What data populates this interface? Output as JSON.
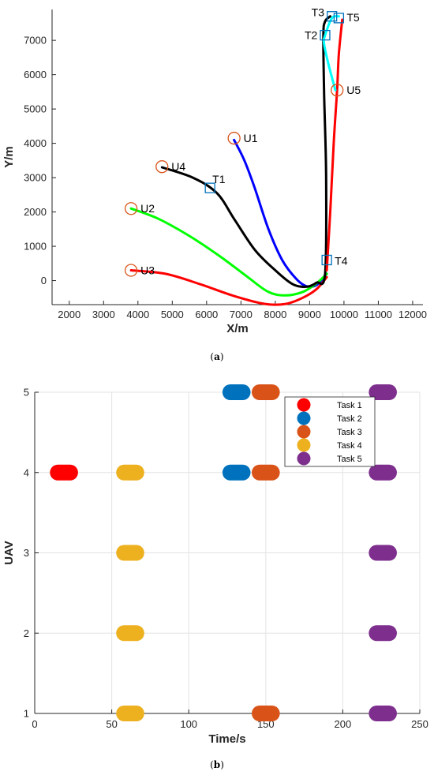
{
  "chart_data": [
    {
      "type": "line",
      "caption_letter": "a",
      "xlabel": "X/m",
      "ylabel": "Y/m",
      "xlim": [
        1500,
        12300
      ],
      "ylim": [
        -700,
        7900
      ],
      "xticks": [
        2000,
        3000,
        4000,
        5000,
        6000,
        7000,
        8000,
        9000,
        10000,
        11000,
        12000
      ],
      "yticks": [
        0,
        1000,
        2000,
        3000,
        4000,
        5000,
        6000,
        7000
      ],
      "grid": false,
      "colors": {
        "U1": "#0000ff",
        "U2": "#00ff00",
        "U3": "#ff0000",
        "U4": "#000000",
        "U5": "#ff0000",
        "T2_T5": "#00ffff",
        "uav_marker": "#d95319",
        "task_marker": "#0072bd"
      },
      "series": [
        {
          "name": "U1",
          "color": "#0000ff",
          "points": [
            [
              6800,
              4100
            ],
            [
              7100,
              3500
            ],
            [
              7400,
              2700
            ],
            [
              7800,
              1500
            ],
            [
              8200,
              600
            ],
            [
              8600,
              60
            ],
            [
              8900,
              -160
            ],
            [
              9200,
              -130
            ],
            [
              9500,
              200
            ]
          ]
        },
        {
          "name": "U2",
          "color": "#00ff00",
          "points": [
            [
              3800,
              2100
            ],
            [
              4600,
              1800
            ],
            [
              5500,
              1300
            ],
            [
              6400,
              700
            ],
            [
              7200,
              100
            ],
            [
              7800,
              -330
            ],
            [
              8300,
              -430
            ],
            [
              8800,
              -330
            ],
            [
              9200,
              -80
            ],
            [
              9500,
              200
            ]
          ]
        },
        {
          "name": "U3",
          "color": "#ff0000",
          "points": [
            [
              3800,
              300
            ],
            [
              4800,
              200
            ],
            [
              5800,
              -100
            ],
            [
              6800,
              -450
            ],
            [
              7700,
              -680
            ],
            [
              8300,
              -680
            ],
            [
              8800,
              -500
            ],
            [
              9200,
              -250
            ],
            [
              9500,
              100
            ]
          ]
        },
        {
          "name": "U4",
          "color": "#000000",
          "points": [
            [
              4700,
              3300
            ],
            [
              5600,
              3000
            ],
            [
              6300,
              2550
            ],
            [
              6800,
              1800
            ],
            [
              7400,
              900
            ],
            [
              8000,
              300
            ],
            [
              8500,
              -100
            ],
            [
              8900,
              -180
            ],
            [
              9200,
              -60
            ],
            [
              9450,
              200
            ],
            [
              9480,
              3000
            ],
            [
              9420,
              5500
            ],
            [
              9400,
              7150
            ],
            [
              9450,
              7550
            ],
            [
              9600,
              7700
            ]
          ]
        },
        {
          "name": "U5",
          "color": "#ff0000",
          "points": [
            [
              9500,
              300
            ],
            [
              9600,
              2000
            ],
            [
              9700,
              4000
            ],
            [
              9800,
              5550
            ],
            [
              9850,
              6600
            ],
            [
              9950,
              7600
            ]
          ]
        },
        {
          "name": "T2-T5",
          "color": "#00ffff",
          "points": [
            [
              9750,
              5550
            ],
            [
              9550,
              6300
            ],
            [
              9420,
              6900
            ],
            [
              9450,
              7150
            ],
            [
              9650,
              7650
            ],
            [
              9850,
              7700
            ]
          ]
        }
      ],
      "uav_markers": [
        {
          "label": "U1",
          "x": 6800,
          "y": 4150
        },
        {
          "label": "U2",
          "x": 3800,
          "y": 2100
        },
        {
          "label": "U3",
          "x": 3800,
          "y": 300
        },
        {
          "label": "U4",
          "x": 4700,
          "y": 3320
        },
        {
          "label": "U5",
          "x": 9800,
          "y": 5550
        }
      ],
      "task_markers": [
        {
          "label": "T1",
          "x": 6100,
          "y": 2700
        },
        {
          "label": "T2",
          "x": 9450,
          "y": 7150
        },
        {
          "label": "T3",
          "x": 9650,
          "y": 7700
        },
        {
          "label": "T4",
          "x": 9500,
          "y": 600
        },
        {
          "label": "T5",
          "x": 9850,
          "y": 7650
        }
      ]
    },
    {
      "type": "scatter",
      "caption_letter": "b",
      "xlabel": "Time/s",
      "ylabel": "UAV",
      "xlim": [
        0,
        250
      ],
      "ylim": [
        1,
        5
      ],
      "xticks": [
        0,
        50,
        100,
        150,
        200,
        250
      ],
      "yticks": [
        1,
        2,
        3,
        4,
        5
      ],
      "grid": true,
      "legend": "top-right",
      "series": [
        {
          "name": "Task 1",
          "color": "#ff0000",
          "points": [
            {
              "start": 15,
              "end": 23,
              "uav": 4
            }
          ]
        },
        {
          "name": "Task 2",
          "color": "#0072bd",
          "points": [
            {
              "start": 127,
              "end": 135,
              "uav": 5
            },
            {
              "start": 127,
              "end": 135,
              "uav": 4
            }
          ]
        },
        {
          "name": "Task 3",
          "color": "#d95319",
          "points": [
            {
              "start": 146,
              "end": 154,
              "uav": 5
            },
            {
              "start": 146,
              "end": 154,
              "uav": 4
            },
            {
              "start": 146,
              "end": 154,
              "uav": 1
            }
          ]
        },
        {
          "name": "Task 4",
          "color": "#edb120",
          "points": [
            {
              "start": 58,
              "end": 66,
              "uav": 4
            },
            {
              "start": 58,
              "end": 66,
              "uav": 3
            },
            {
              "start": 58,
              "end": 66,
              "uav": 2
            },
            {
              "start": 58,
              "end": 66,
              "uav": 1
            }
          ]
        },
        {
          "name": "Task 5",
          "color": "#7e2f8e",
          "points": [
            {
              "start": 222,
              "end": 230,
              "uav": 5
            },
            {
              "start": 222,
              "end": 230,
              "uav": 4
            },
            {
              "start": 222,
              "end": 230,
              "uav": 3
            },
            {
              "start": 222,
              "end": 230,
              "uav": 2
            },
            {
              "start": 222,
              "end": 230,
              "uav": 1
            }
          ]
        }
      ]
    }
  ]
}
